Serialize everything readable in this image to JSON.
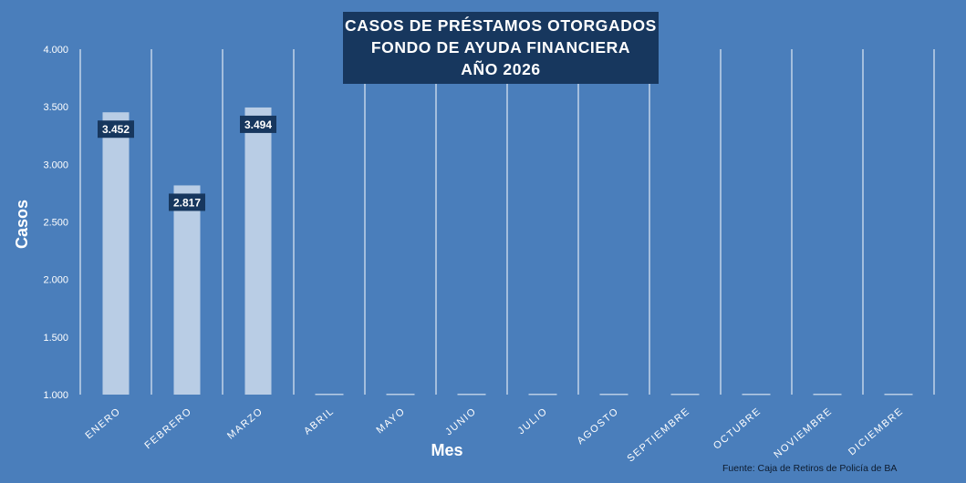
{
  "title": {
    "line1": "CASOS DE PRÉSTAMOS OTORGADOS",
    "line2": "FONDO DE AYUDA FINANCIERA",
    "line3": "AÑO 2026"
  },
  "source": "Fuente: Caja de Retiros de Policía de BA",
  "colors": {
    "background": "#4a7ebb",
    "bar": "#b9cde5",
    "label_box": "#17375e",
    "text": "#ffffff",
    "gridline": "#ffffff"
  },
  "chart_data": {
    "type": "bar",
    "title": "CASOS DE PRÉSTAMOS OTORGADOS FONDO DE AYUDA FINANCIERA AÑO 2026",
    "xlabel": "Mes",
    "ylabel": "Casos",
    "categories": [
      "ENERO",
      "FEBRERO",
      "MARZO",
      "ABRIL",
      "MAYO",
      "JUNIO",
      "JULIO",
      "AGOSTO",
      "SEPTIEMBRE",
      "OCTUBRE",
      "NOVIEMBRE",
      "DICIEMBRE"
    ],
    "values": [
      3452,
      2817,
      3494,
      null,
      null,
      null,
      null,
      null,
      null,
      null,
      null,
      null
    ],
    "data_labels": [
      "3.452",
      "2.817",
      "3.494",
      "",
      "",
      "",
      "",
      "",
      "",
      "",
      "",
      ""
    ],
    "ylim": [
      1000,
      4000
    ],
    "yticks": [
      1000,
      1500,
      2000,
      2500,
      3000,
      3500,
      4000
    ],
    "ytick_labels": [
      "1.000",
      "1.500",
      "2.000",
      "2.500",
      "3.000",
      "3.500",
      "4.000"
    ],
    "grid": "vertical lines between categories",
    "legend": "none"
  }
}
